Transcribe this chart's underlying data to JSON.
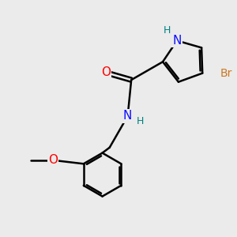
{
  "background_color": "#ebebeb",
  "atom_colors": {
    "C": "#000000",
    "N": "#1010ff",
    "O": "#ff0000",
    "Br": "#cc7722",
    "H": "#008080"
  },
  "bond_color": "#000000",
  "bond_width": 1.8,
  "font_size_atom": 11,
  "font_size_h": 9,
  "font_size_br": 10,
  "font_size_methoxy": 9
}
